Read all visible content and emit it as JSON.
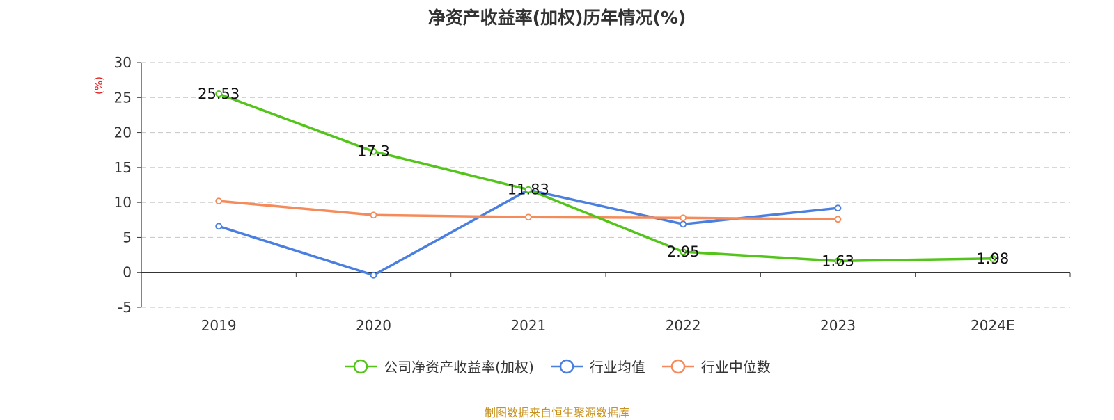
{
  "chart_data": {
    "type": "line",
    "title": "净资产收益率(加权)历年情况(%)",
    "ylabel": "(%)",
    "xlabel": "",
    "categories": [
      "2019",
      "2020",
      "2021",
      "2022",
      "2023",
      "2024E"
    ],
    "ylim": [
      -5,
      30
    ],
    "yticks": [
      -5,
      0,
      5,
      10,
      15,
      20,
      25,
      30
    ],
    "grid": true,
    "legend_position": "bottom",
    "series": [
      {
        "name": "公司净资产收益率(加权)",
        "color": "#52c41a",
        "values": [
          25.53,
          17.3,
          11.83,
          2.95,
          1.63,
          1.98
        ],
        "labels": [
          "25.53",
          "17.3",
          "11.83",
          "2.95",
          "1.63",
          "1.98"
        ]
      },
      {
        "name": "行业均值",
        "color": "#4a7fe0",
        "values": [
          6.6,
          -0.4,
          11.8,
          6.9,
          9.2,
          null
        ]
      },
      {
        "name": "行业中位数",
        "color": "#f58b5a",
        "values": [
          10.2,
          8.2,
          7.9,
          7.8,
          7.6,
          null
        ]
      }
    ]
  },
  "footer": {
    "source": "制图数据来自恒生聚源数据库"
  }
}
